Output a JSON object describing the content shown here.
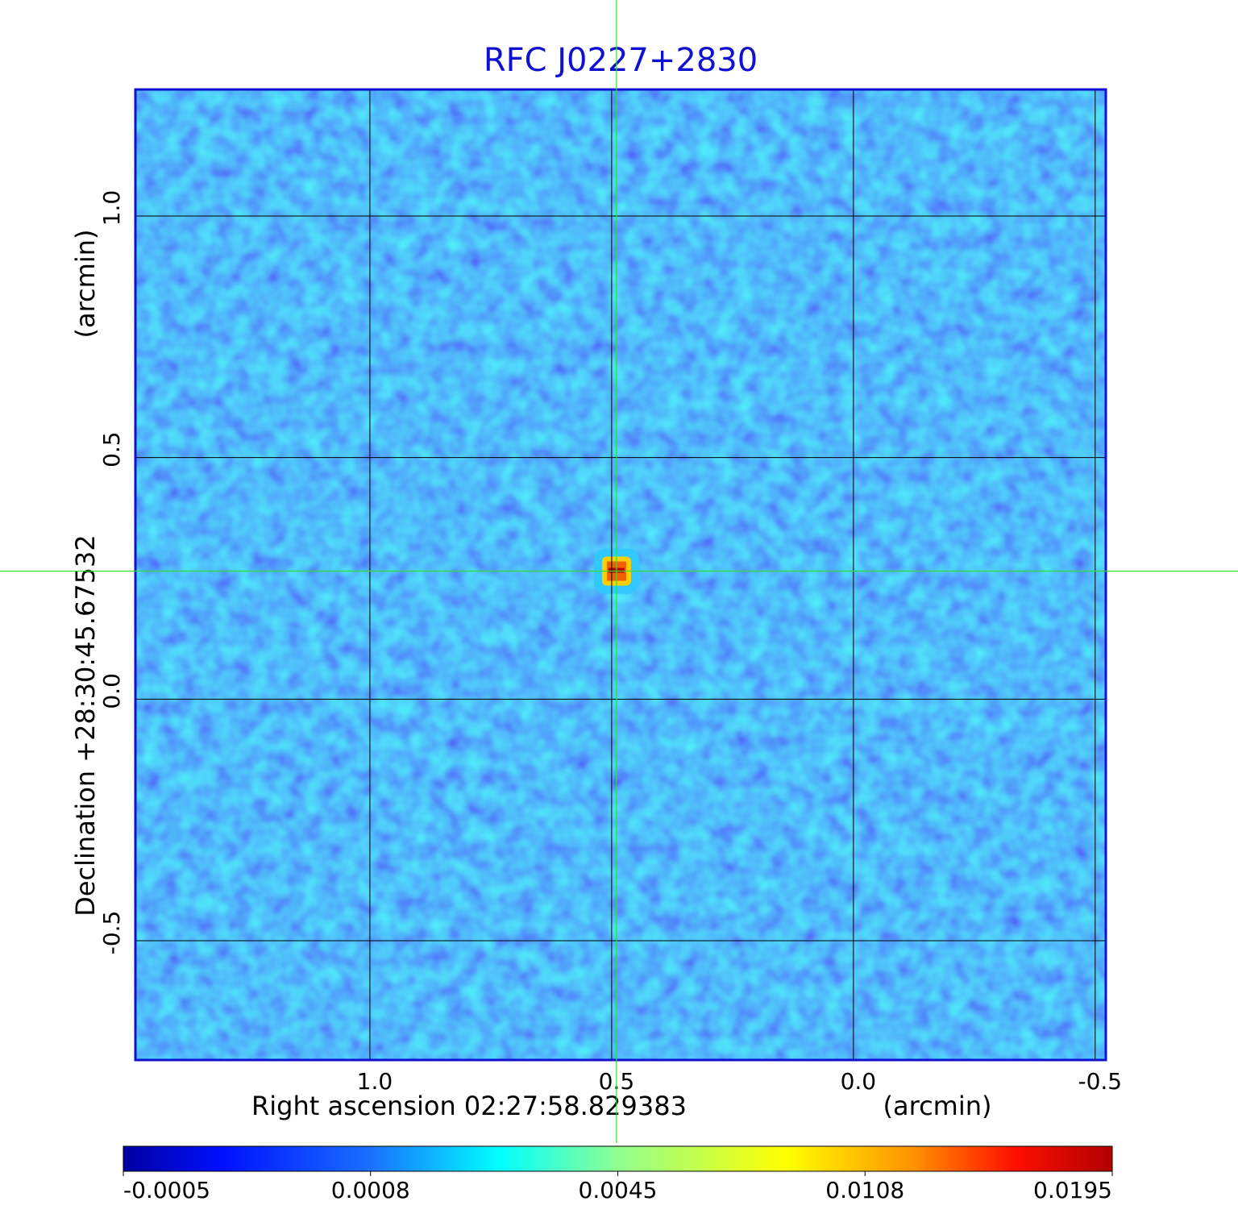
{
  "chart_data": {
    "type": "image",
    "title": "RFC J0227+2830",
    "xlabel": "Right ascension  02:27:58.829383",
    "xunit": "(arcmin)",
    "ylabel": "Declination  +28:30:45.67532",
    "yunit": "(arcmin)",
    "xlim": [
      1.485,
      -0.522
    ],
    "ylim": [
      -0.747,
      1.262
    ],
    "xticks": [
      {
        "value": 1.0,
        "label": "1.0"
      },
      {
        "value": 0.5,
        "label": "0.5"
      },
      {
        "value": 0.0,
        "label": "0.0"
      },
      {
        "value": -0.5,
        "label": "-0.5"
      }
    ],
    "yticks": [
      {
        "value": 1.0,
        "label": "1.0"
      },
      {
        "value": 0.5,
        "label": "0.5"
      },
      {
        "value": 0.0,
        "label": "0.0"
      },
      {
        "value": -0.5,
        "label": "-0.5"
      }
    ],
    "grid": true,
    "peak": {
      "x": 0.49,
      "y": 0.265,
      "value": 0.0195
    },
    "colorbar": {
      "ticks": [
        -0.0005,
        0.0008,
        0.0045,
        0.0108,
        0.0195
      ]
    }
  }
}
